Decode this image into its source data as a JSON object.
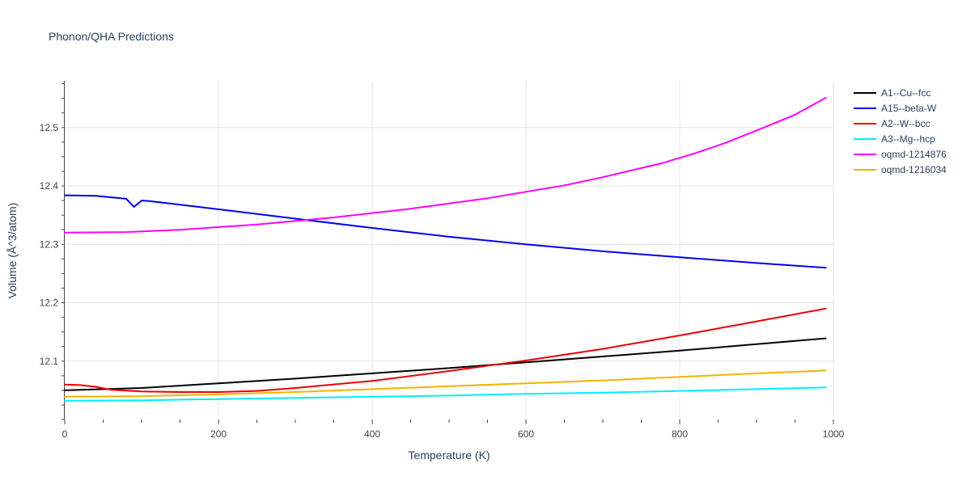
{
  "chart_data": {
    "type": "line",
    "title": "Phonon/QHA Predictions",
    "xlabel": "Temperature (K)",
    "ylabel": "Volume (Å^3/atom)",
    "xlim": [
      0,
      1000
    ],
    "ylim": [
      12.0,
      12.58
    ],
    "x_ticks": [
      0,
      200,
      400,
      600,
      800,
      1000
    ],
    "y_ticks": [
      12.1,
      12.2,
      12.3,
      12.4,
      12.5
    ],
    "x_tick_labels": [
      "0",
      "200",
      "400",
      "600",
      "800",
      "1000"
    ],
    "y_tick_labels": [
      "12.1",
      "12.2",
      "12.3",
      "12.4",
      "12.5"
    ],
    "grid": true,
    "legend_position": "right",
    "series": [
      {
        "name": "A1--Cu--fcc",
        "color": "#000000",
        "x": [
          0,
          100,
          200,
          300,
          400,
          500,
          600,
          700,
          800,
          900,
          990
        ],
        "y": [
          12.05,
          12.054,
          12.062,
          12.07,
          12.079,
          12.088,
          12.098,
          12.108,
          12.118,
          12.129,
          12.139
        ]
      },
      {
        "name": "A15--beta-W",
        "color": "#0000ee",
        "x": [
          0,
          40,
          80,
          90,
          100,
          110,
          150,
          200,
          300,
          400,
          500,
          600,
          700,
          800,
          900,
          990
        ],
        "y": [
          12.384,
          12.383,
          12.378,
          12.364,
          12.375,
          12.374,
          12.368,
          12.36,
          12.344,
          12.328,
          12.313,
          12.3,
          12.288,
          12.278,
          12.268,
          12.26
        ]
      },
      {
        "name": "A2--W--bcc",
        "color": "#ee0000",
        "x": [
          0,
          20,
          40,
          60,
          100,
          150,
          200,
          250,
          300,
          400,
          500,
          600,
          700,
          800,
          900,
          990
        ],
        "y": [
          12.06,
          12.059,
          12.056,
          12.051,
          12.048,
          12.047,
          12.047,
          12.049,
          12.054,
          12.066,
          12.083,
          12.101,
          12.121,
          12.144,
          12.168,
          12.19
        ]
      },
      {
        "name": "A3--Mg--hcp",
        "color": "#00eeff",
        "x": [
          0,
          100,
          200,
          300,
          400,
          500,
          600,
          700,
          800,
          900,
          990
        ],
        "y": [
          12.032,
          12.033,
          12.035,
          12.037,
          12.039,
          12.041,
          12.044,
          12.046,
          12.049,
          12.052,
          12.055
        ]
      },
      {
        "name": "oqmd-1214876",
        "color": "#ff00ff",
        "x": [
          0,
          80,
          150,
          250,
          350,
          450,
          550,
          650,
          700,
          780,
          820,
          860,
          900,
          950,
          990
        ],
        "y": [
          12.32,
          12.321,
          12.325,
          12.334,
          12.346,
          12.361,
          12.379,
          12.401,
          12.415,
          12.44,
          12.456,
          12.474,
          12.495,
          12.522,
          12.551
        ]
      },
      {
        "name": "oqmd-1216034",
        "color": "#f2b400",
        "x": [
          0,
          100,
          200,
          300,
          400,
          500,
          600,
          700,
          800,
          900,
          990
        ],
        "y": [
          12.039,
          12.04,
          12.043,
          12.047,
          12.052,
          12.057,
          12.062,
          12.067,
          12.073,
          12.079,
          12.084
        ]
      }
    ]
  }
}
